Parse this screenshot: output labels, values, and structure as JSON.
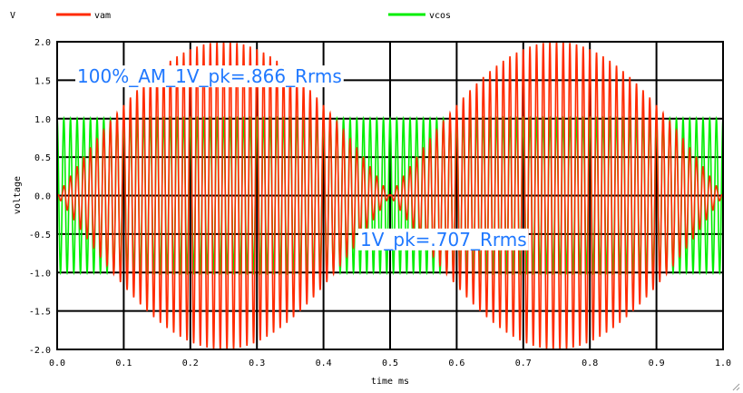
{
  "chart_data": {
    "type": "line",
    "y_unit": "V",
    "xlabel": "time   ms",
    "ylabel": "voltage",
    "xlim": [
      0.0,
      1.0
    ],
    "ylim": [
      -2.0,
      2.0
    ],
    "x_ticks": [
      "0.0",
      "0.1",
      "0.2",
      "0.3",
      "0.4",
      "0.5",
      "0.6",
      "0.7",
      "0.8",
      "0.9",
      "1.0"
    ],
    "y_ticks": [
      "2.0",
      "1.5",
      "1.0",
      "0.5",
      "0.0",
      "-0.5",
      "-1.0",
      "-1.5",
      "-2.0"
    ],
    "grid": true,
    "legend_position": "top",
    "series": [
      {
        "name": "vam",
        "color": "#ff2a00",
        "description": "100% AM: carrier modulated by 2 kHz envelope, peak 2.0 V at 0.25 ms and 0.75 ms, zero at 0, 0.5, 1.0 ms",
        "carrier_freq_khz": 100,
        "envelope_freq_khz": 2,
        "peak": 2.0
      },
      {
        "name": "vcos",
        "color": "#00ee00",
        "description": "unmodulated carrier, amplitude 1.0 V",
        "carrier_freq_khz": 100,
        "peak": 1.0
      }
    ],
    "annotations": [
      {
        "text": "100%_AM_1V_pk=.866_Rrms",
        "x": 0.03,
        "y": 1.55
      },
      {
        "text": "1V_pk=.707_Rrms",
        "x": 0.455,
        "y": -0.57
      }
    ]
  }
}
